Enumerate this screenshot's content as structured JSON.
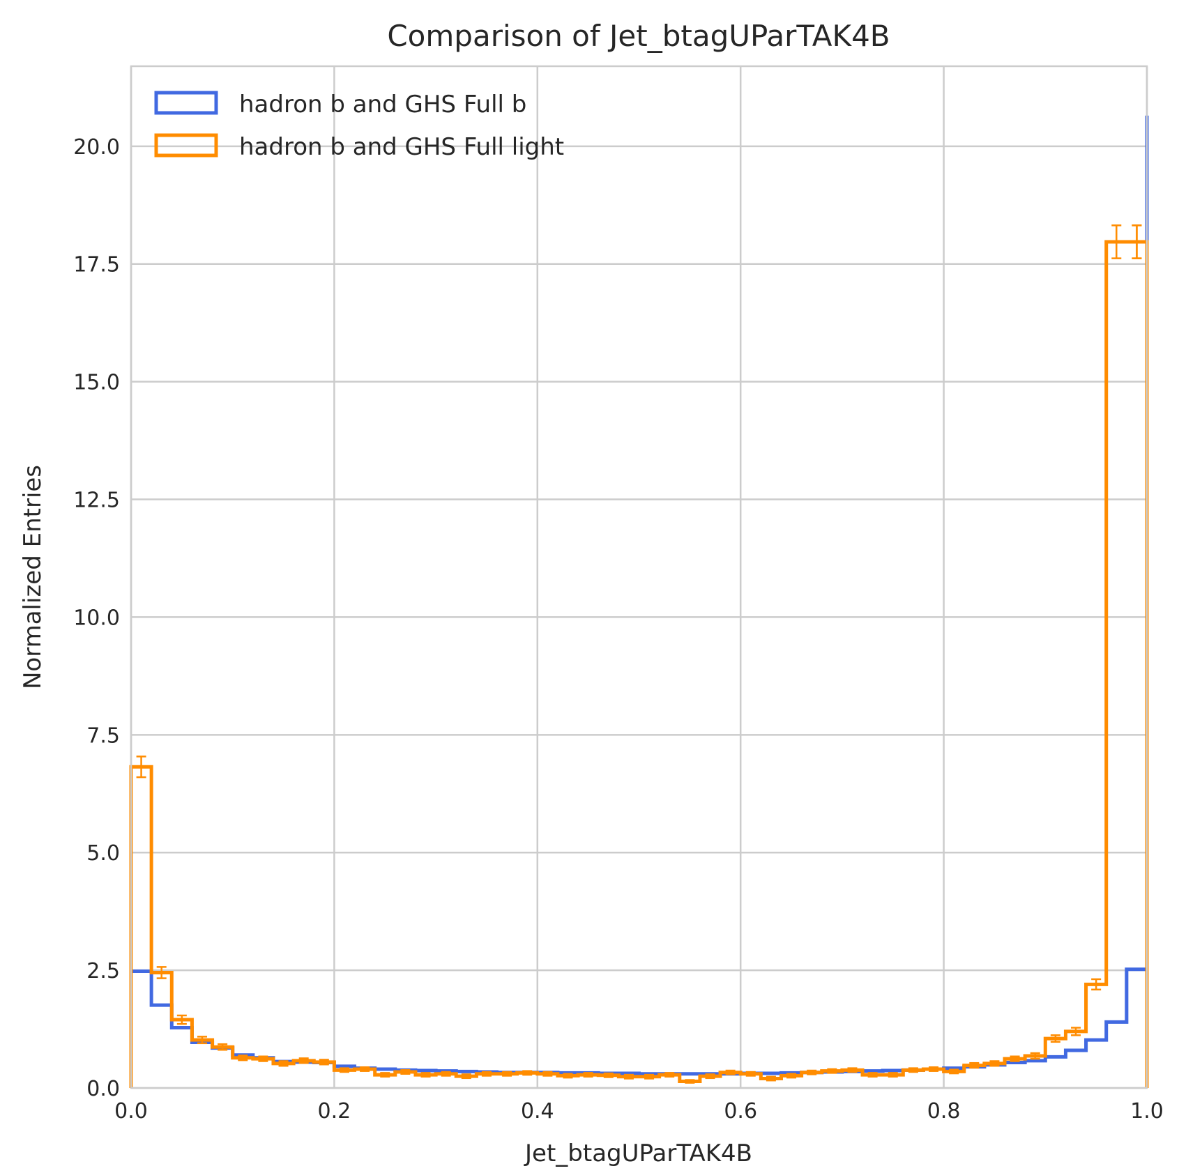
{
  "chart_data": {
    "type": "step",
    "title": "Comparison of Jet_btagUParTAK4B",
    "xlabel": "Jet_btagUParTAK4B",
    "ylabel": "Normalized Entries",
    "xlim": [
      0.0,
      1.0
    ],
    "ylim": [
      0.0,
      21.7
    ],
    "xticks": [
      "0.0",
      "0.2",
      "0.4",
      "0.6",
      "0.8",
      "1.0"
    ],
    "yticks": [
      "0.0",
      "2.5",
      "5.0",
      "7.5",
      "10.0",
      "12.5",
      "15.0",
      "17.5",
      "20.0"
    ],
    "grid": true,
    "legend_position": "upper-left",
    "bin_edges_start": 0.0,
    "bin_width": 0.02,
    "series": [
      {
        "name": "hadron b and GHS Full b",
        "color": "#4169e1",
        "values": [
          2.48,
          1.76,
          1.28,
          0.97,
          0.85,
          0.7,
          0.64,
          0.56,
          0.55,
          0.54,
          0.46,
          0.42,
          0.4,
          0.38,
          0.37,
          0.36,
          0.35,
          0.34,
          0.33,
          0.33,
          0.33,
          0.32,
          0.32,
          0.31,
          0.31,
          0.3,
          0.3,
          0.3,
          0.3,
          0.3,
          0.31,
          0.31,
          0.32,
          0.33,
          0.34,
          0.35,
          0.36,
          0.37,
          0.38,
          0.4,
          0.42,
          0.45,
          0.49,
          0.54,
          0.58,
          0.66,
          0.8,
          1.02,
          1.4,
          2.52,
          20.65
        ]
      },
      {
        "name": "hadron b and GHS Full light",
        "color": "#ff8c00",
        "values": [
          6.82,
          2.45,
          1.45,
          1.02,
          0.87,
          0.64,
          0.62,
          0.52,
          0.58,
          0.55,
          0.38,
          0.4,
          0.28,
          0.34,
          0.28,
          0.3,
          0.25,
          0.3,
          0.3,
          0.32,
          0.3,
          0.26,
          0.28,
          0.27,
          0.24,
          0.24,
          0.28,
          0.14,
          0.25,
          0.33,
          0.3,
          0.2,
          0.26,
          0.33,
          0.36,
          0.38,
          0.28,
          0.28,
          0.38,
          0.4,
          0.35,
          0.48,
          0.52,
          0.62,
          0.68,
          1.05,
          1.2,
          2.2,
          17.97,
          17.97,
          17.97
        ],
        "errors": [
          0.22,
          0.12,
          0.09,
          0.07,
          0.06,
          0.05,
          0.05,
          0.05,
          0.05,
          0.05,
          0.04,
          0.04,
          0.04,
          0.04,
          0.04,
          0.04,
          0.04,
          0.04,
          0.04,
          0.04,
          0.04,
          0.04,
          0.04,
          0.04,
          0.04,
          0.04,
          0.04,
          0.03,
          0.04,
          0.04,
          0.04,
          0.04,
          0.04,
          0.04,
          0.04,
          0.04,
          0.04,
          0.04,
          0.04,
          0.04,
          0.04,
          0.05,
          0.05,
          0.05,
          0.06,
          0.07,
          0.08,
          0.11,
          0.35,
          0.35,
          0.35
        ]
      }
    ]
  }
}
